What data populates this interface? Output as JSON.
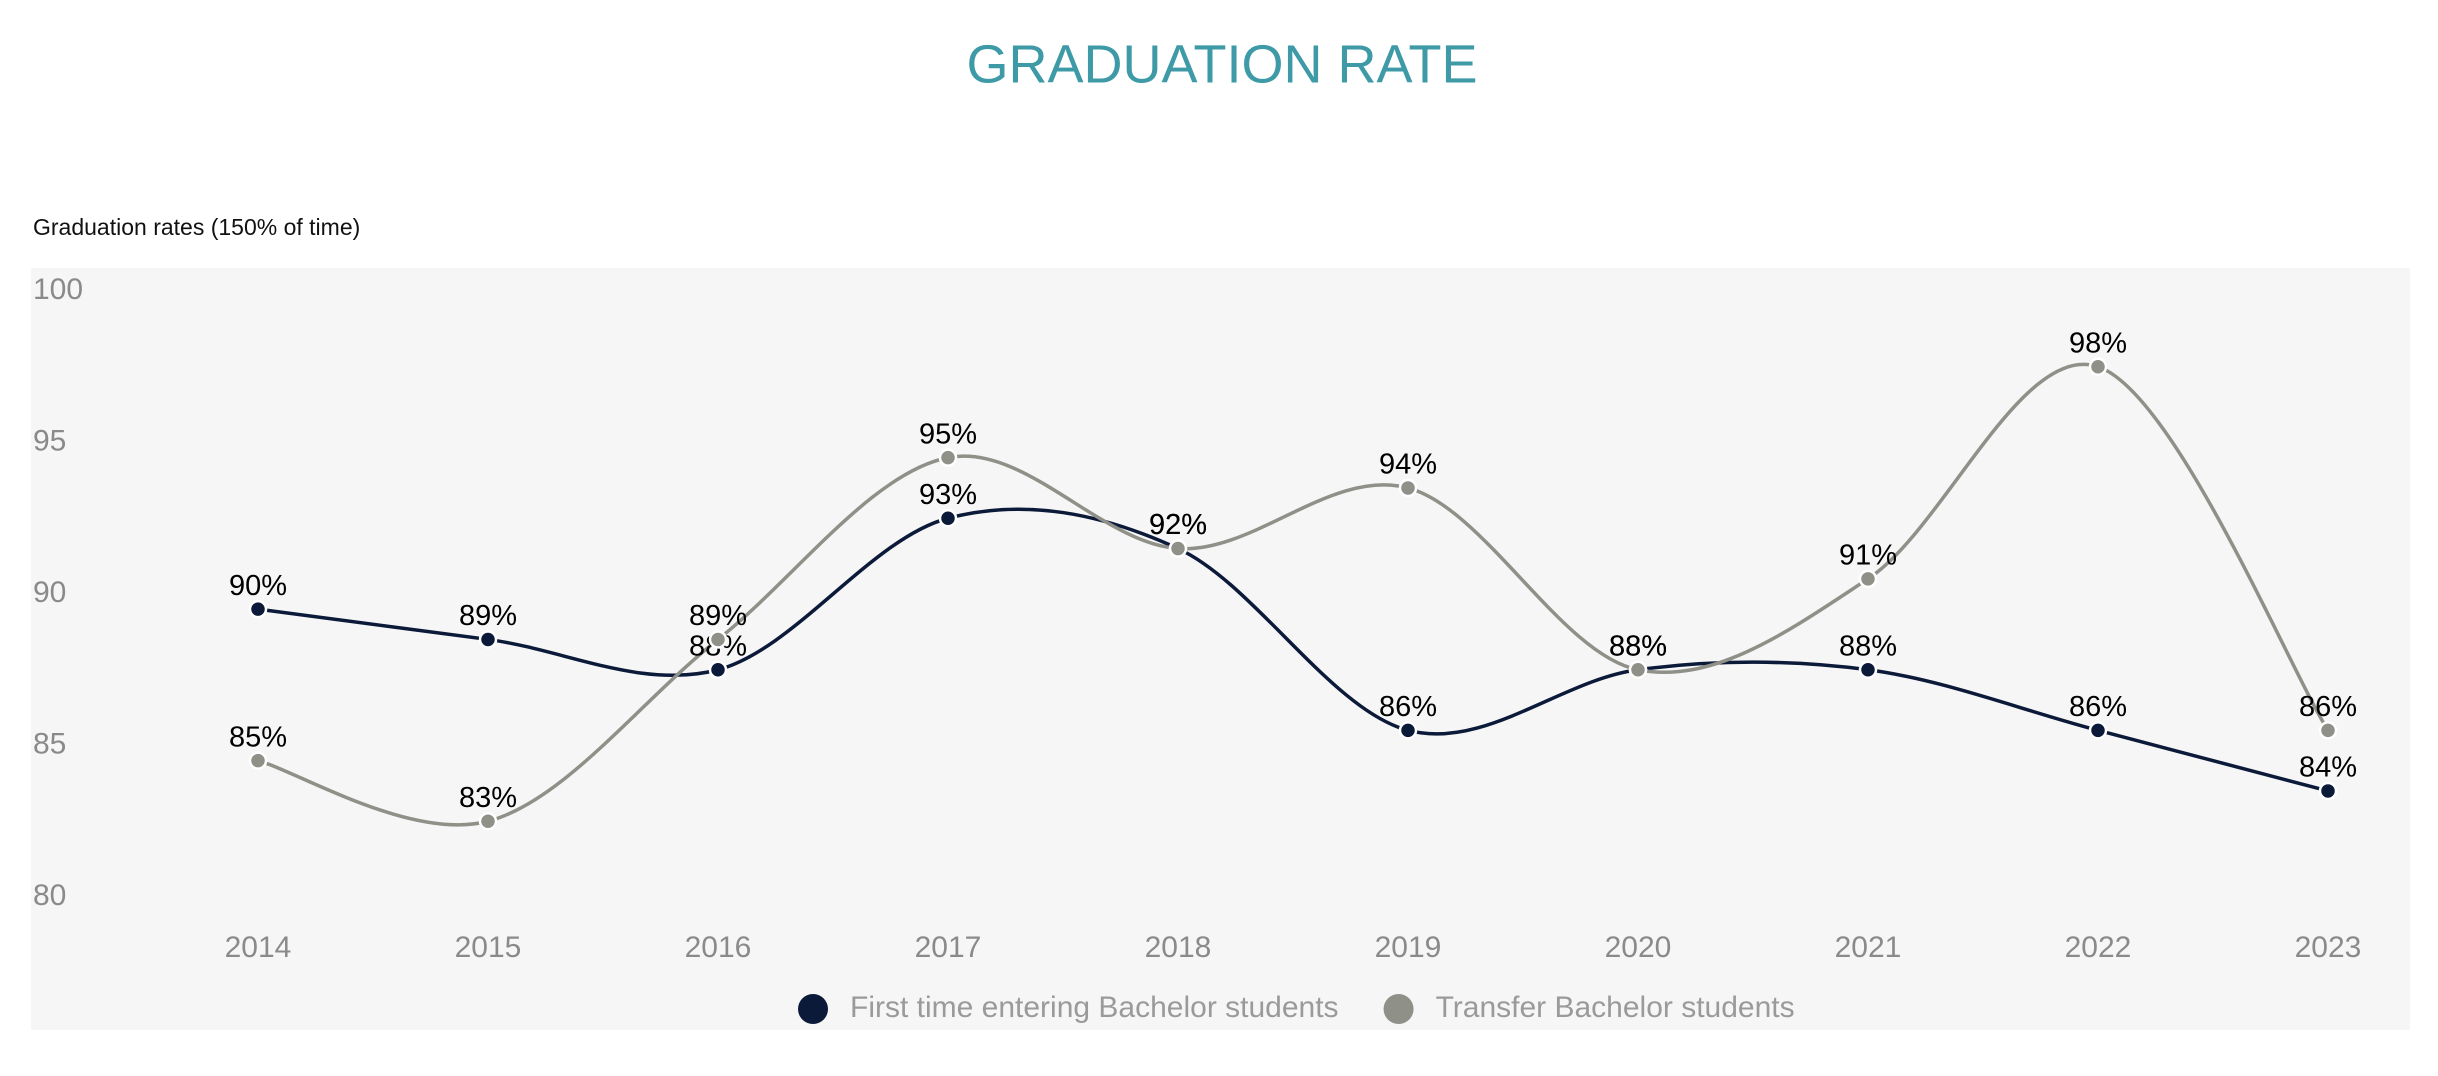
{
  "chart_data": {
    "type": "line",
    "title": "GRADUATION RATE",
    "y_label": "Graduation rates (150% of time)",
    "categories": [
      "2014",
      "2015",
      "2016",
      "2017",
      "2018",
      "2019",
      "2020",
      "2021",
      "2022",
      "2023"
    ],
    "series": [
      {
        "name": "First time entering Bachelor students",
        "color": "#0c1a3a",
        "values": [
          89.5,
          88.5,
          87.5,
          92.5,
          91.5,
          85.5,
          87.5,
          87.5,
          85.5,
          83.5
        ],
        "value_labels": [
          "90%",
          "89%",
          "88%",
          "93%",
          "92%",
          "86%",
          "88%",
          "88%",
          "86%",
          "84%"
        ]
      },
      {
        "name": "Transfer Bachelor students",
        "color": "#8f9088",
        "values": [
          84.5,
          82.5,
          88.5,
          94.5,
          91.5,
          93.5,
          87.5,
          90.5,
          97.5,
          85.5
        ],
        "value_labels": [
          "85%",
          "83%",
          "89%",
          "95%",
          "92%",
          "94%",
          "88%",
          "91%",
          "98%",
          "86%"
        ]
      }
    ],
    "ylim": [
      80,
      100
    ],
    "yticks": [
      80,
      85,
      90,
      95,
      100
    ],
    "grid": false,
    "legend": "bottom"
  }
}
